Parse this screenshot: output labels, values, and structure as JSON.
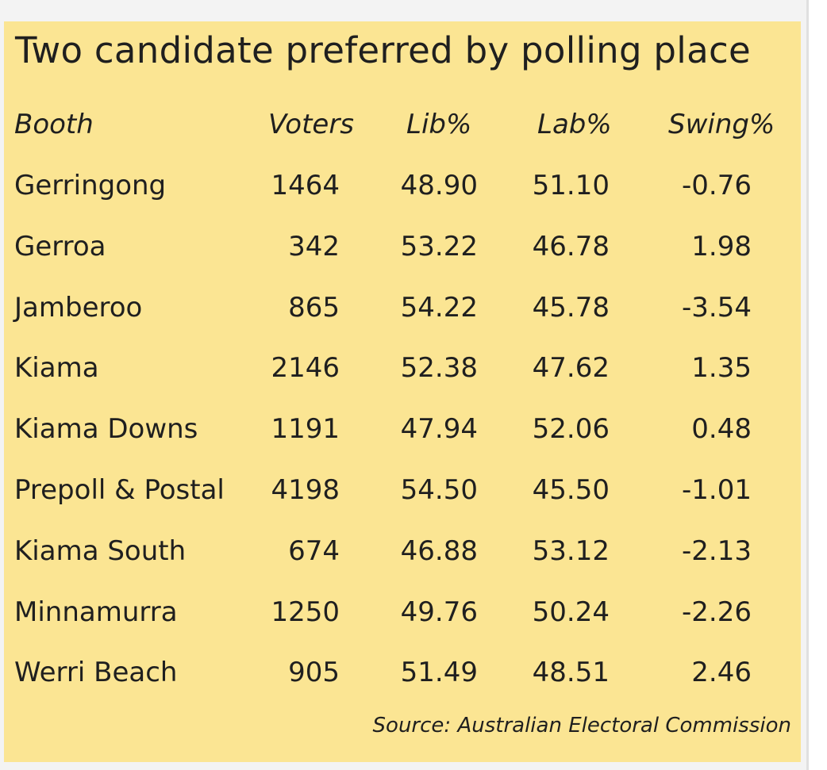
{
  "chart_data": {
    "type": "table",
    "title": "Two candidate preferred by polling place",
    "columns": [
      "Booth",
      "Voters",
      "Lib%",
      "Lab%",
      "Swing%"
    ],
    "rows": [
      [
        "Gerringong",
        "1464",
        "48.90",
        "51.10",
        "-0.76"
      ],
      [
        "Gerroa",
        "342",
        "53.22",
        "46.78",
        "1.98"
      ],
      [
        "Jamberoo",
        "865",
        "54.22",
        "45.78",
        "-3.54"
      ],
      [
        "Kiama",
        "2146",
        "52.38",
        "47.62",
        "1.35"
      ],
      [
        "Kiama Downs",
        "1191",
        "47.94",
        "52.06",
        "0.48"
      ],
      [
        "Prepoll & Postal",
        "4198",
        "54.50",
        "45.50",
        "-1.01"
      ],
      [
        "Kiama South",
        "674",
        "46.88",
        "53.12",
        "-2.13"
      ],
      [
        "Minnamurra",
        "1250",
        "49.76",
        "50.24",
        "-2.26"
      ],
      [
        "Werri Beach",
        "905",
        "51.49",
        "48.51",
        "2.46"
      ]
    ],
    "source": "Source: Australian Electoral Commission",
    "colors": {
      "panel_background": "#fbe593",
      "text": "#1f1f1f"
    }
  }
}
